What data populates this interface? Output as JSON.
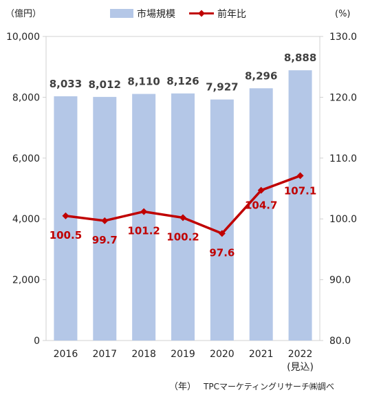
{
  "chart_data": {
    "type": "bar",
    "categories": [
      "2016",
      "2017",
      "2018",
      "2019",
      "2020",
      "2021",
      "2022"
    ],
    "category_notes": [
      "",
      "",
      "",
      "",
      "",
      "",
      "(見込)"
    ],
    "series": [
      {
        "name": "市場規模",
        "type": "bar",
        "axis": "left",
        "color": "#b4c7e7",
        "values": [
          8033,
          8012,
          8110,
          8126,
          7927,
          8296,
          8888
        ],
        "labels": [
          "8,033",
          "8,012",
          "8,110",
          "8,126",
          "7,927",
          "8,296",
          "8,888"
        ]
      },
      {
        "name": "前年比",
        "type": "line",
        "axis": "right",
        "color": "#c00000",
        "values": [
          100.5,
          99.7,
          101.2,
          100.2,
          97.6,
          104.7,
          107.1
        ],
        "labels": [
          "100.5",
          "99.7",
          "101.2",
          "100.2",
          "97.6",
          "104.7",
          "107.1"
        ]
      }
    ],
    "y_left": {
      "unit_label": "（億円）",
      "range": [
        0,
        10000
      ],
      "ticks": [
        0,
        2000,
        4000,
        6000,
        8000,
        10000
      ],
      "tick_labels": [
        "0",
        "2,000",
        "4,000",
        "6,000",
        "8,000",
        "10,000"
      ]
    },
    "y_right": {
      "unit_label": "(%)",
      "range": [
        80,
        130
      ],
      "ticks": [
        80,
        90,
        100,
        110,
        120,
        130
      ],
      "tick_labels": [
        "80.0",
        "90.0",
        "100.0",
        "110.0",
        "120.0",
        "130.0"
      ]
    },
    "xlabel": "（年）",
    "source": "TPCマーケティングリサーチ㈱調べ",
    "legend_position": "top",
    "grid": false
  }
}
